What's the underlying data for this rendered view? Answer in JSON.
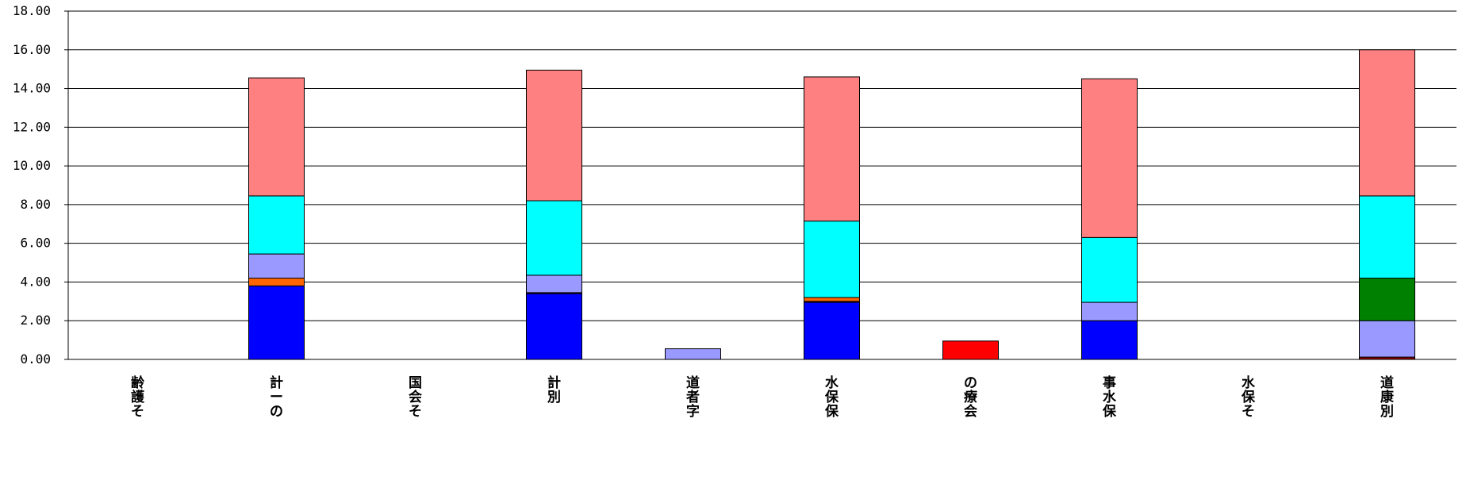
{
  "chart_data": {
    "type": "bar",
    "stacked": true,
    "title": "",
    "xlabel": "",
    "ylabel": "",
    "ylim": [
      0,
      18
    ],
    "y_ticks": [
      "0.00",
      "2.00",
      "4.00",
      "6.00",
      "8.00",
      "10.00",
      "12.00",
      "14.00",
      "16.00",
      "18.00"
    ],
    "grid": true,
    "legend": "none",
    "categories": [
      "齢護そ",
      "計ーの",
      "国会そ",
      "計別",
      "道者字",
      "水保保",
      "の療会",
      "事水保",
      "水保そ",
      "道康別"
    ],
    "series": [
      {
        "name": "series-1",
        "color": "#0000FF",
        "values": [
          0,
          3.8,
          0,
          3.4,
          0,
          2.95,
          0,
          2.0,
          0,
          0
        ]
      },
      {
        "name": "series-2",
        "color": "#8B0000",
        "values": [
          0,
          0,
          0,
          0.05,
          0,
          0.05,
          0,
          0,
          0,
          0.12
        ]
      },
      {
        "name": "series-3",
        "color": "#FF6600",
        "values": [
          0,
          0.4,
          0,
          0,
          0,
          0.2,
          0,
          0,
          0,
          0
        ]
      },
      {
        "name": "series-4",
        "color": "#FF0000",
        "values": [
          0,
          0,
          0,
          0,
          0,
          0,
          0.95,
          0,
          0,
          0
        ]
      },
      {
        "name": "series-5",
        "color": "#9999FF",
        "values": [
          0,
          1.25,
          0,
          0.9,
          0.55,
          0,
          0,
          0.95,
          0,
          1.88
        ]
      },
      {
        "name": "series-6",
        "color": "#008000",
        "values": [
          0,
          0,
          0,
          0,
          0,
          0,
          0,
          0,
          0,
          2.2
        ]
      },
      {
        "name": "series-7",
        "color": "#00FFFF",
        "values": [
          0,
          3.0,
          0,
          3.85,
          0,
          3.95,
          0,
          3.35,
          0,
          4.25
        ]
      },
      {
        "name": "series-8",
        "color": "#FF8080",
        "values": [
          0,
          6.1,
          0,
          6.75,
          0,
          7.45,
          0,
          8.2,
          0,
          7.55
        ]
      }
    ]
  }
}
